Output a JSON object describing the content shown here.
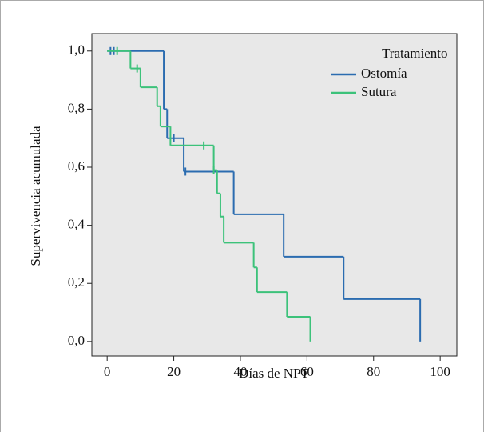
{
  "chart_data": {
    "type": "step",
    "x_label": "Días de NPT",
    "y_label": "Supervivencia acumulada",
    "legend_title": "Tratamiento",
    "legend": "upper right",
    "xlim": [
      -4.6,
      105
    ],
    "ylim": [
      -0.05,
      1.06
    ],
    "xticks": [
      0,
      20,
      40,
      60,
      80,
      100
    ],
    "yticks": [
      {
        "value": 0,
        "label": "0,0"
      },
      {
        "value": 0.2,
        "label": "0,2"
      },
      {
        "value": 0.4,
        "label": "0,4"
      },
      {
        "value": 0.6,
        "label": "0,6"
      },
      {
        "value": 0.8,
        "label": "0,8"
      },
      {
        "value": 1,
        "label": "1,0"
      }
    ],
    "series": [
      {
        "name": "Ostomía",
        "color": "#2b6cb0",
        "x": [
          0,
          17,
          18,
          23,
          38,
          53,
          71,
          94
        ],
        "values": [
          1,
          0.8,
          0.7,
          0.585,
          0.438,
          0.292,
          0.146,
          0
        ],
        "censored_x": [
          1,
          2,
          20,
          23.5
        ],
        "censored_values": [
          1,
          1,
          0.7,
          0.585
        ]
      },
      {
        "name": "Sutura",
        "color": "#3cc27a",
        "x": [
          0,
          7,
          10,
          15,
          16,
          19,
          32,
          33,
          34,
          35,
          44,
          45,
          54,
          61
        ],
        "values": [
          1,
          0.94,
          0.875,
          0.81,
          0.74,
          0.675,
          0.59,
          0.51,
          0.43,
          0.34,
          0.255,
          0.17,
          0.085,
          0
        ],
        "censored_x": [
          3,
          9,
          29,
          32
        ],
        "censored_values": [
          1,
          0.94,
          0.675,
          0.59
        ]
      }
    ]
  }
}
